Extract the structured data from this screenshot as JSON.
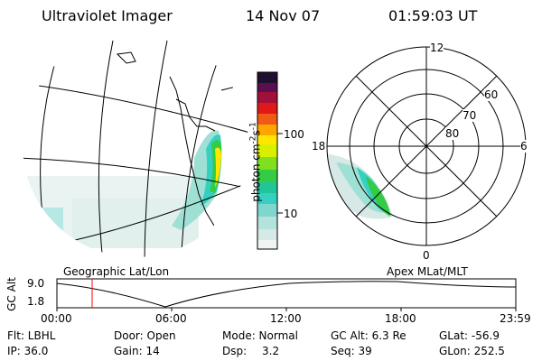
{
  "header": {
    "title": "Ultraviolet Imager",
    "date": "14 Nov 07",
    "time": "01:59:03 UT"
  },
  "panels": {
    "left_label": "Geographic Lat/Lon",
    "right_label": "Apex MLat/MLT"
  },
  "colorbar": {
    "label": "photon cm",
    "label_sup1": "-2",
    "label_mid": "s",
    "label_sup2": "-1",
    "ticks": [
      "100",
      "10"
    ]
  },
  "polar": {
    "mlt_labels": [
      "12",
      "18",
      "6",
      "0"
    ],
    "mlat_labels": [
      "60",
      "70",
      "80"
    ]
  },
  "altitude_plot": {
    "ylabel": "GC Alt",
    "y_ticks": [
      "9.0",
      "1.8"
    ],
    "x_ticks": [
      "00:00",
      "06:00",
      "12:00",
      "18:00",
      "23:59"
    ]
  },
  "status": {
    "flt": "Flt: LBHL",
    "ip": "IP: 36.0",
    "door": "Door: Open",
    "gain": "Gain: 14",
    "mode": "Mode: Normal",
    "dsp_label": "Dsp:",
    "dsp_value": "3.2",
    "gc_alt": "GC Alt: 6.3 Re",
    "seq": "Seq: 39",
    "glat": "GLat: -56.9",
    "glon": "GLon: 252.5"
  }
}
